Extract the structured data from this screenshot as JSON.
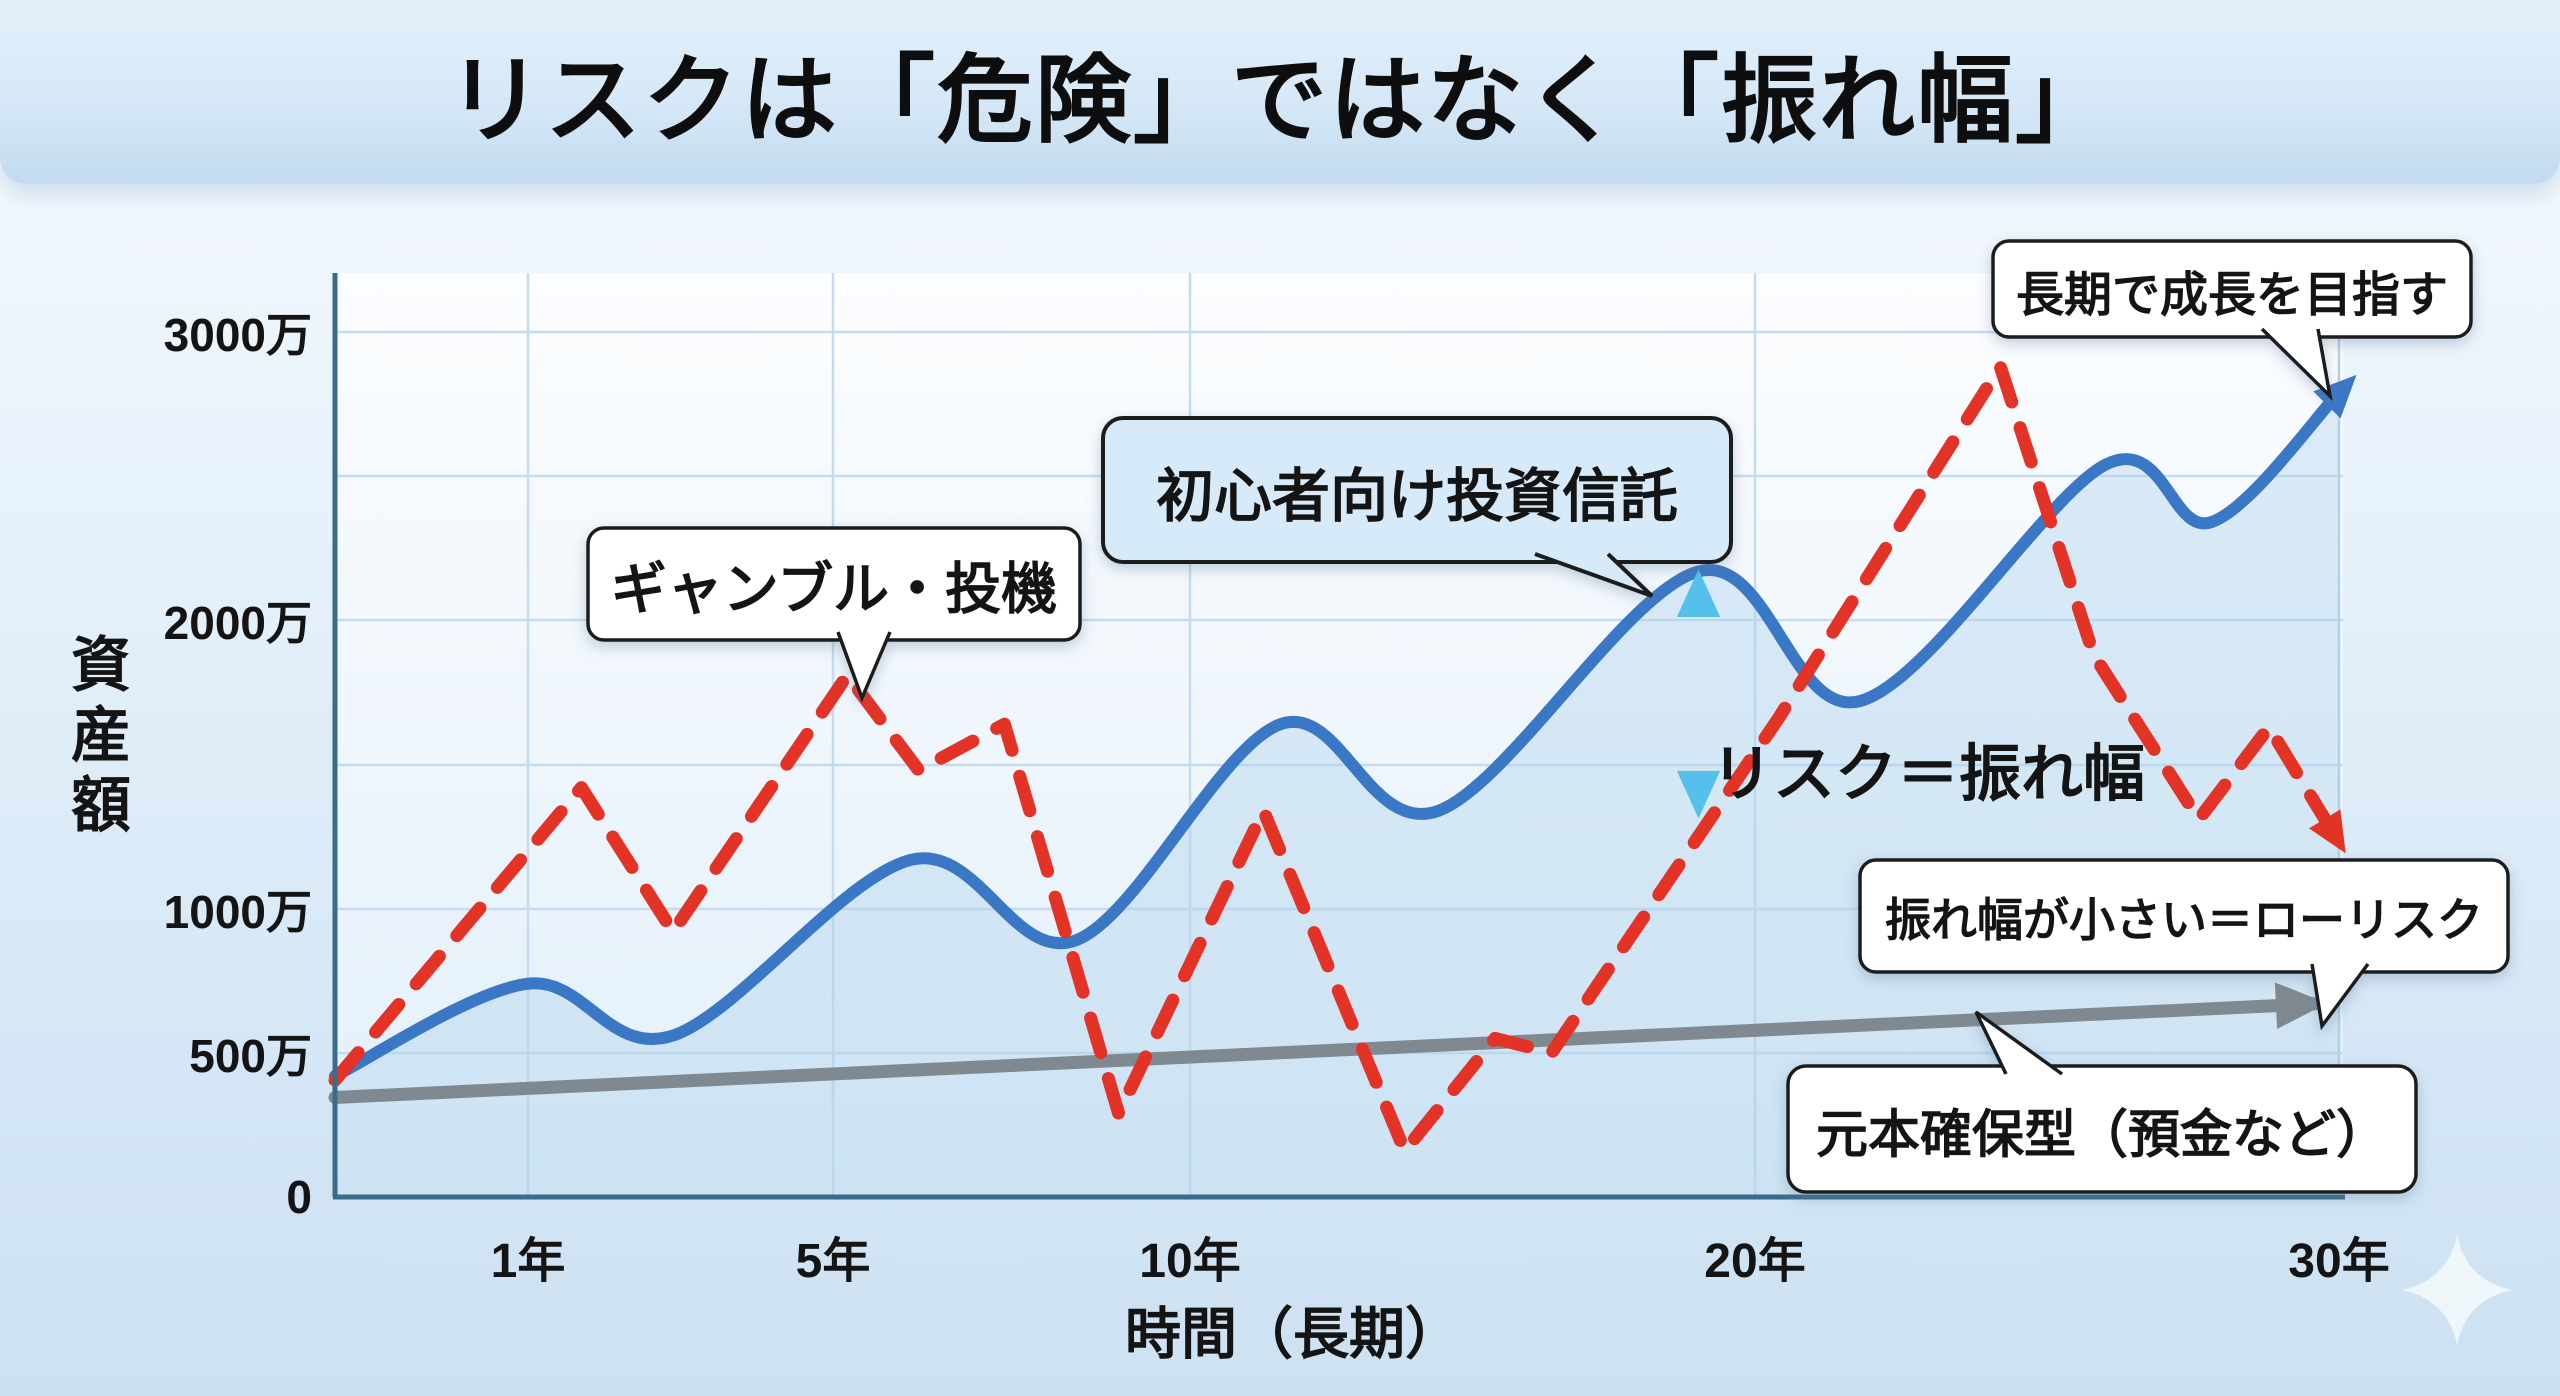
{
  "title": "リスクは「危険」ではなく「振れ幅」",
  "y_axis": {
    "label": "資産額",
    "ticks": [
      "3000万",
      "2000万",
      "1000万",
      "500万",
      "0"
    ]
  },
  "x_axis": {
    "label": "時間（長期）",
    "ticks": [
      "1年",
      "5年",
      "10年",
      "20年",
      "30年"
    ]
  },
  "annotations": {
    "gamble": "ギャンブル・投機",
    "beginner_fund": "初心者向け投資信託",
    "risk_range": "リスク＝振れ幅",
    "long_term_growth": "長期で成長を目指す",
    "low_risk": "振れ幅が小さい＝ローリスク",
    "principal_guaranteed": "元本確保型（預金など）"
  },
  "icons": {
    "sparkle": "four-point-star-sparkle",
    "risk_arrow": "vertical-double-arrow",
    "growth_arrow": "up-right-arrowhead"
  },
  "colors": {
    "gamble_red": "#e23326",
    "fund_blue": "#3a77c4",
    "fund_area": "#aacfeb",
    "principal_gray": "#7f898f",
    "risk_arrow_blue_top": "#6fd0f2",
    "risk_arrow_blue_bottom": "#45a7e0",
    "grid": "#c5dcef",
    "axis": "#3a6b88",
    "bubble_border": "#1f1f1f",
    "beginner_bubble_fill": "#d7eaf9"
  },
  "chart_data": {
    "type": "line",
    "title": "リスクは「危険」ではなく「振れ幅」",
    "xlabel": "時間（長期）",
    "ylabel": "資産額",
    "x_unit": "年",
    "y_unit": "万円",
    "xlim": [
      0,
      30
    ],
    "ylim": [
      0,
      3200
    ],
    "x_ticks": [
      1,
      5,
      10,
      20,
      30
    ],
    "y_ticks": [
      0,
      500,
      1000,
      2000,
      3000
    ],
    "grid": true,
    "legend": "none (series labeled via speech bubbles)",
    "series": [
      {
        "name": "ギャンブル・投機",
        "line_style": "dashed",
        "smooth": false,
        "color": "#e23326",
        "stroke_width": 13,
        "arrow_end": true,
        "points": [
          [
            0,
            405
          ],
          [
            1.7,
            1420
          ],
          [
            2.9,
            920
          ],
          [
            5.2,
            1810
          ],
          [
            6.2,
            1480
          ],
          [
            7.4,
            1640
          ],
          [
            9,
            290
          ],
          [
            11.3,
            1340
          ],
          [
            13.8,
            160
          ],
          [
            15.4,
            550
          ],
          [
            16.4,
            500
          ],
          [
            20.4,
            1660
          ],
          [
            24.2,
            2880
          ],
          [
            25.8,
            1880
          ],
          [
            27.6,
            1310
          ],
          [
            28.8,
            1630
          ],
          [
            30,
            1230
          ]
        ]
      },
      {
        "name": "初心者向け投資信託",
        "line_style": "solid",
        "smooth": true,
        "color": "#3a77c4",
        "stroke_width": 12,
        "arrow_end": true,
        "area_fill": true,
        "points": [
          [
            0,
            420
          ],
          [
            1,
            740
          ],
          [
            2.9,
            560
          ],
          [
            6.1,
            1170
          ],
          [
            8.4,
            890
          ],
          [
            11.6,
            1640
          ],
          [
            14.4,
            1340
          ],
          [
            19,
            2170
          ],
          [
            21.8,
            1720
          ],
          [
            26,
            2540
          ],
          [
            27.8,
            2340
          ],
          [
            30,
            2790
          ]
        ]
      },
      {
        "name": "元本確保型（預金など）",
        "line_style": "solid",
        "smooth": false,
        "color": "#7f898f",
        "stroke_width": 13,
        "arrow_end": true,
        "points": [
          [
            0,
            345
          ],
          [
            29.6,
            670
          ]
        ]
      }
    ],
    "risk_arrow": {
      "x_year": 19,
      "value_top": 2180,
      "value_bottom": 1310,
      "label": "リスク＝振れ幅"
    }
  }
}
